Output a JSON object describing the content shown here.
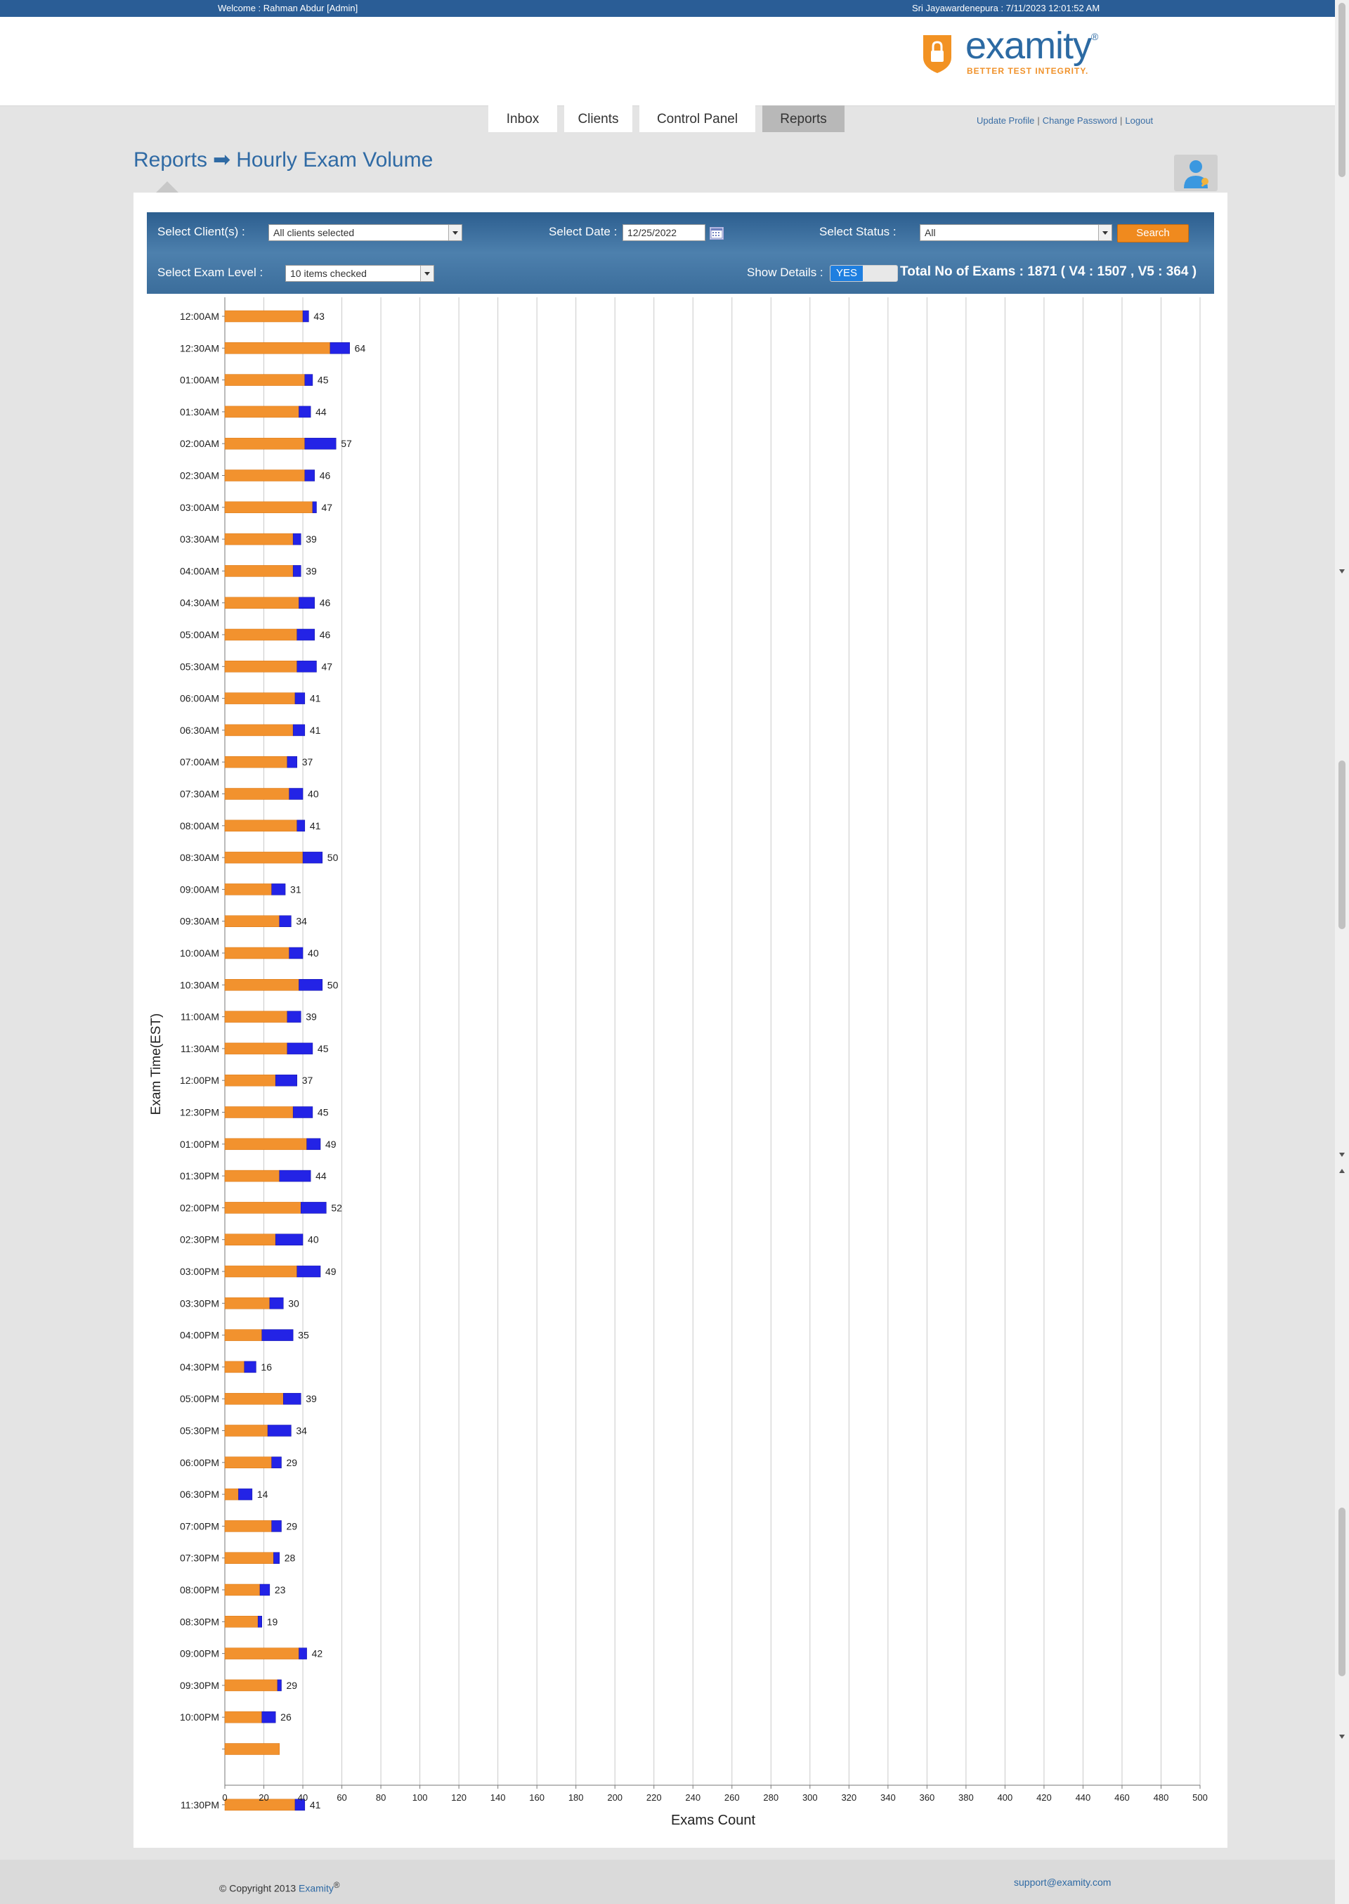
{
  "topbar": {
    "welcome": "Welcome : Rahman Abdur [Admin]",
    "datetime": "Sri Jayawardenepura : 7/11/2023 12:01:52 AM"
  },
  "logo": {
    "wordmark": "examity",
    "registered": "®",
    "tagline": "BETTER TEST INTEGRITY."
  },
  "nav": {
    "tabs": [
      "Inbox",
      "Clients",
      "Control Panel",
      "Reports"
    ],
    "active": "Reports"
  },
  "userlinks": {
    "update_profile": "Update Profile",
    "change_password": "Change Password",
    "logout": "Logout"
  },
  "breadcrumb": {
    "root": "Reports",
    "arrow": "➡",
    "page": "Hourly Exam Volume"
  },
  "filters": {
    "client_label": "Select Client(s) :",
    "client_value": "All clients selected",
    "date_label": "Select Date :",
    "date_value": "12/25/2022",
    "status_label": "Select Status :",
    "status_value": "All",
    "search_label": "Search",
    "exam_level_label": "Select Exam Level :",
    "exam_level_value": "10 items checked",
    "show_details_label": "Show Details :",
    "show_details_value": "YES",
    "total_text": "Total No of Exams : 1871 ( V4 : 1507 , V5 : 364 )"
  },
  "colors": {
    "v4": "#f2922e",
    "v5": "#2323e6",
    "accent": "#2c6aa3",
    "topbar": "#2a5d96"
  },
  "chart_data": {
    "type": "bar",
    "orientation": "horizontal",
    "stacked": true,
    "ylabel": "Exam Time(EST)",
    "xlabel": "Exams Count",
    "xlim": [
      0,
      500
    ],
    "xticks": [
      0,
      20,
      40,
      60,
      80,
      100,
      120,
      140,
      160,
      180,
      200,
      220,
      240,
      260,
      280,
      300,
      320,
      340,
      360,
      380,
      400,
      420,
      440,
      460,
      480,
      500
    ],
    "grid": true,
    "categories": [
      "12:00AM",
      "12:30AM",
      "01:00AM",
      "01:30AM",
      "02:00AM",
      "02:30AM",
      "03:00AM",
      "03:30AM",
      "04:00AM",
      "04:30AM",
      "05:00AM",
      "05:30AM",
      "06:00AM",
      "06:30AM",
      "07:00AM",
      "07:30AM",
      "08:00AM",
      "08:30AM",
      "09:00AM",
      "09:30AM",
      "10:00AM",
      "10:30AM",
      "11:00AM",
      "11:30AM",
      "12:00PM",
      "12:30PM",
      "01:00PM",
      "01:30PM",
      "02:00PM",
      "02:30PM",
      "03:00PM",
      "03:30PM",
      "04:00PM",
      "04:30PM",
      "05:00PM",
      "05:30PM",
      "06:00PM",
      "06:30PM",
      "07:00PM",
      "07:30PM",
      "08:00PM",
      "08:30PM",
      "09:00PM",
      "09:30PM",
      "10:00PM",
      "",
      "11:30PM"
    ],
    "series": [
      {
        "values": [
          40,
          54,
          41,
          38,
          41,
          41,
          45,
          35,
          35,
          38,
          37,
          37,
          36,
          35,
          32,
          33,
          37,
          40,
          24,
          28,
          33,
          38,
          32,
          32,
          26,
          35,
          42,
          28,
          39,
          26,
          37,
          23,
          19,
          10,
          30,
          22,
          24,
          7,
          24,
          25,
          18,
          17,
          38,
          27,
          19,
          28,
          36
        ]
      },
      {
        "values": [
          3,
          10,
          4,
          6,
          16,
          5,
          2,
          4,
          4,
          8,
          9,
          10,
          5,
          6,
          5,
          7,
          4,
          10,
          7,
          6,
          7,
          12,
          7,
          13,
          11,
          10,
          7,
          16,
          13,
          14,
          12,
          7,
          16,
          6,
          9,
          12,
          5,
          7,
          5,
          3,
          5,
          2,
          4,
          2,
          7,
          0,
          5
        ]
      }
    ],
    "totals": [
      43,
      64,
      45,
      44,
      57,
      46,
      47,
      39,
      39,
      46,
      46,
      47,
      41,
      41,
      37,
      40,
      41,
      50,
      31,
      34,
      40,
      50,
      39,
      45,
      37,
      45,
      49,
      44,
      52,
      40,
      49,
      30,
      35,
      16,
      39,
      34,
      29,
      14,
      29,
      28,
      23,
      19,
      42,
      29,
      26,
      null,
      41
    ]
  },
  "footer": {
    "copyright": "© Copyright 2013",
    "brand": "Examity",
    "reg": "®",
    "email": "support@examity.com"
  }
}
